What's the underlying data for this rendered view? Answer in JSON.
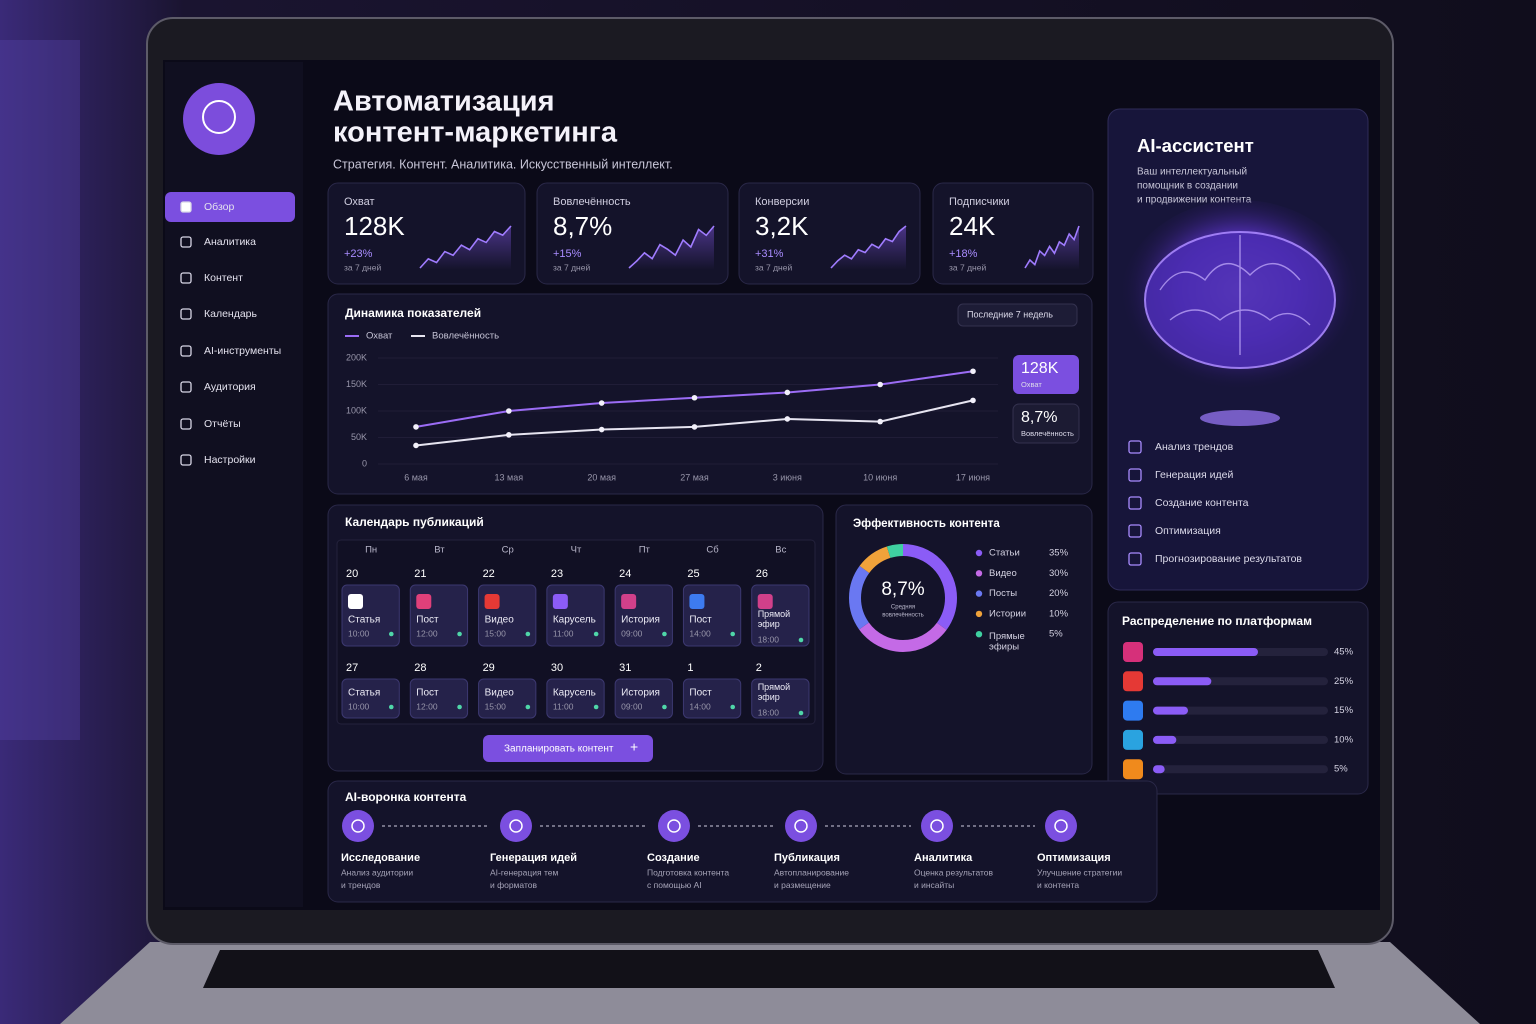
{
  "sidebar": {
    "menu": [
      "Обзор",
      "Аналитика",
      "Контент",
      "Календарь",
      "AI-инструменты",
      "Аудитория",
      "Отчёты",
      "Настройки"
    ],
    "active": 0
  },
  "header": {
    "title": [
      "Автоматизация",
      "контент-маркетинга"
    ],
    "subtitle": "Стратегия. Контент. Аналитика. Искусственный интеллект."
  },
  "kpis": [
    {
      "label": "Охват",
      "value": "128K",
      "change": "+23%",
      "period": "за 7 дней",
      "trend": [
        20,
        30,
        26,
        38,
        34,
        45,
        40,
        52,
        48,
        60,
        56,
        66
      ]
    },
    {
      "label": "Вовлечённость",
      "value": "8,7%",
      "change": "+15%",
      "period": "за 7 дней",
      "trend": [
        22,
        28,
        35,
        30,
        42,
        38,
        33,
        46,
        40,
        55,
        50,
        58
      ]
    },
    {
      "label": "Конверсии",
      "value": "3,2K",
      "change": "+31%",
      "period": "за 7 дней",
      "trend": [
        18,
        26,
        32,
        28,
        38,
        35,
        44,
        40,
        50,
        47,
        58,
        64
      ]
    },
    {
      "label": "Подписчики",
      "value": "24K",
      "change": "+18%",
      "period": "за 7 дней",
      "trend": [
        25,
        32,
        28,
        40,
        36,
        44,
        38,
        48,
        45,
        55,
        50,
        62
      ]
    }
  ],
  "chart_data": [
    {
      "type": "line",
      "title": "Динамика показателей",
      "filter": "Последние 7 недель",
      "categories": [
        "6 мая",
        "13 мая",
        "20 мая",
        "27 мая",
        "3 июня",
        "10 июня",
        "17 июня"
      ],
      "series": [
        {
          "name": "Охват",
          "color": "#9b6cf5",
          "values": [
            70,
            100,
            115,
            125,
            135,
            150,
            175
          ]
        },
        {
          "name": "Вовлечённость",
          "color": "#e6e4f0",
          "values": [
            35,
            55,
            65,
            70,
            85,
            80,
            120
          ]
        }
      ],
      "ylim": [
        0,
        200000
      ],
      "yticks": [
        0,
        {
          "value": 50000,
          "label": "50K"
        },
        {
          "value": 100000,
          "label": "100K"
        },
        {
          "value": 150000,
          "label": "150K"
        },
        {
          "value": 200000,
          "label": "200K"
        }
      ],
      "callouts": [
        {
          "value": "128K",
          "label": "Охват"
        },
        {
          "value": "8,7%",
          "label": "Вовлечённость"
        }
      ]
    },
    {
      "type": "donut",
      "title": "Эффективность контента",
      "center_value": "8,7%",
      "center_label": [
        "Средняя",
        "вовлечённость"
      ],
      "categories": [
        "Статьи",
        "Видео",
        "Посты",
        "Истории",
        "Прямые эфиры"
      ],
      "values": [
        35,
        30,
        20,
        10,
        5
      ],
      "value_labels": [
        "35%",
        "30%",
        "20%",
        "10%",
        "5%"
      ],
      "colors": [
        "#8b5cf6",
        "#c46ae6",
        "#6a78f2",
        "#f0a23a",
        "#3fd0a0"
      ]
    },
    {
      "type": "hbar",
      "title": "Распределение по платформам",
      "values": [
        45,
        25,
        15,
        10,
        5
      ],
      "value_labels": [
        "45%",
        "25%",
        "15%",
        "10%",
        "5%"
      ],
      "color": "#8b5cf6",
      "xlim": [
        0,
        75
      ]
    }
  ],
  "calendar": {
    "title": "Календарь публикаций",
    "weekdays": [
      "Пн",
      "Вт",
      "Ср",
      "Чт",
      "Пт",
      "Сб",
      "Вс"
    ],
    "weeks": [
      [
        {
          "day": "20",
          "type": "Статья",
          "time": "10:00"
        },
        {
          "day": "21",
          "type": "Пост",
          "time": "12:00"
        },
        {
          "day": "22",
          "type": "Видео",
          "time": "15:00"
        },
        {
          "day": "23",
          "type": "Карусель",
          "time": "11:00"
        },
        {
          "day": "24",
          "type": "История",
          "time": "09:00"
        },
        {
          "day": "25",
          "type": "Пост",
          "time": "14:00"
        },
        {
          "day": "26",
          "type": "Прямой эфир",
          "time": "18:00"
        }
      ],
      [
        {
          "day": "27",
          "type": "Статья",
          "time": "10:00"
        },
        {
          "day": "28",
          "type": "Пост",
          "time": "12:00"
        },
        {
          "day": "29",
          "type": "Видео",
          "time": "15:00"
        },
        {
          "day": "30",
          "type": "Карусель",
          "time": "11:00"
        },
        {
          "day": "31",
          "type": "История",
          "time": "09:00"
        },
        {
          "day": "1",
          "type": "Пост",
          "time": "14:00"
        },
        {
          "day": "2",
          "type": "Прямой эфир",
          "time": "18:00"
        }
      ]
    ],
    "button": "Запланировать контент"
  },
  "assistant": {
    "title": "AI-ассистент",
    "description": [
      "Ваш интеллектуальный",
      "помощник в создании",
      "и продвижении контента"
    ],
    "features": [
      "Анализ трендов",
      "Генерация идей",
      "Создание контента",
      "Оптимизация",
      "Прогнозирование результатов"
    ]
  },
  "funnel": {
    "title": "AI-воронка контента",
    "steps": [
      {
        "title": "Исследование",
        "description": [
          "Анализ аудитории",
          "и трендов"
        ]
      },
      {
        "title": "Генерация идей",
        "description": [
          "AI-генерация тем",
          "и форматов"
        ]
      },
      {
        "title": "Создание",
        "description": [
          "Подготовка контента",
          "с помощью AI"
        ]
      },
      {
        "title": "Публикация",
        "description": [
          "Автопланирование",
          "и размещение"
        ]
      },
      {
        "title": "Аналитика",
        "description": [
          "Оценка результатов",
          "и инсайты"
        ]
      },
      {
        "title": "Оптимизация",
        "description": [
          "Улучшение стратегии",
          "и контента"
        ]
      }
    ]
  }
}
